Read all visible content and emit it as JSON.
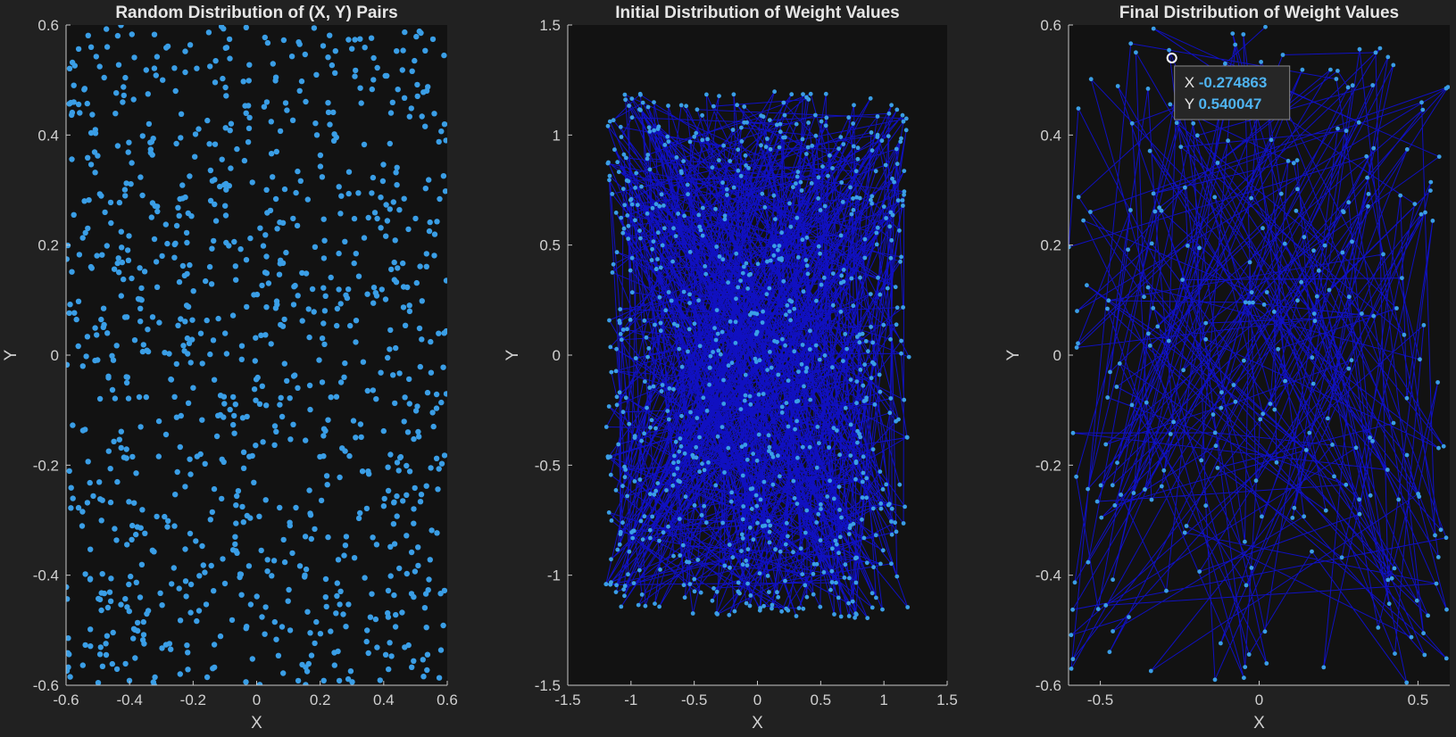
{
  "theme": {
    "figure_bg": "#212121",
    "axes_bg": "#121212",
    "axis_color": "#c8c8c8",
    "text_color": "#d0d0d0",
    "title_color": "#e6e6e6",
    "point_color": "#3a9ee6",
    "line_color": "#1010e0",
    "datatip_value_color": "#4fb3f0"
  },
  "chart_data": [
    {
      "type": "scatter",
      "title": "Random Distribution of (X, Y) Pairs",
      "xlabel": "X",
      "ylabel": "Y",
      "xlim": [
        -0.6,
        0.6
      ],
      "ylim": [
        -0.6,
        0.6
      ],
      "xticks": [
        -0.6,
        -0.4,
        -0.2,
        0,
        0.2,
        0.4,
        0.6
      ],
      "xtick_labels": [
        "-0.6",
        "-0.4",
        "-0.2",
        "0",
        "0.2",
        "0.4",
        "0.6"
      ],
      "yticks": [
        -0.6,
        -0.4,
        -0.2,
        0,
        0.2,
        0.4,
        0.6
      ],
      "ytick_labels": [
        "-0.6",
        "-0.4",
        "-0.2",
        "0",
        "0.2",
        "0.4",
        "0.6"
      ],
      "grid": false,
      "points": {
        "generator": "uniform",
        "seed": 11,
        "count": 1000,
        "xrange": [
          -0.6,
          0.6
        ],
        "yrange": [
          -0.6,
          0.6
        ]
      },
      "connect": false
    },
    {
      "type": "line",
      "title": "Initial Distribution of Weight Values",
      "xlabel": "X",
      "ylabel": "Y",
      "xlim": [
        -1.5,
        1.5
      ],
      "ylim": [
        -1.5,
        1.5
      ],
      "xticks": [
        -1.5,
        -1,
        -0.5,
        0,
        0.5,
        1,
        1.5
      ],
      "xtick_labels": [
        "-1.5",
        "-1",
        "-0.5",
        "0",
        "0.5",
        "1",
        "1.5"
      ],
      "yticks": [
        -1.5,
        -1,
        -0.5,
        0,
        0.5,
        1,
        1.5
      ],
      "ytick_labels": [
        "-1.5",
        "-1",
        "-0.5",
        "0",
        "0.5",
        "1",
        "1.5"
      ],
      "grid": false,
      "points": {
        "generator": "uniform",
        "seed": 23,
        "count": 800,
        "xrange": [
          -1.2,
          1.2
        ],
        "yrange": [
          -1.2,
          1.2
        ]
      },
      "connect": true
    },
    {
      "type": "line",
      "title": "Final Distribution of Weight Values",
      "xlabel": "X",
      "ylabel": "Y",
      "xlim": [
        -0.6,
        0.6
      ],
      "ylim": [
        -0.6,
        0.6
      ],
      "xticks": [
        -0.5,
        0,
        0.5
      ],
      "xtick_labels": [
        "-0.5",
        "0",
        "0.5"
      ],
      "yticks": [
        -0.6,
        -0.4,
        -0.2,
        0,
        0.2,
        0.4,
        0.6
      ],
      "ytick_labels": [
        "-0.6",
        "-0.4",
        "-0.2",
        "0",
        "0.2",
        "0.4",
        "0.6"
      ],
      "grid": false,
      "points": {
        "generator": "uniform",
        "seed": 37,
        "count": 260,
        "xrange": [
          -0.6,
          0.6
        ],
        "yrange": [
          -0.6,
          0.6
        ]
      },
      "connect": true,
      "datatip": {
        "x": -0.274863,
        "y": 0.540047,
        "x_label": "X",
        "y_label": "Y",
        "x_text": "-0.274863",
        "y_text": "0.540047"
      }
    }
  ]
}
